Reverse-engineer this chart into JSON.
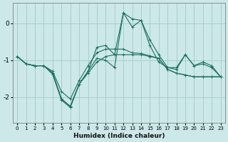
{
  "xlabel": "Humidex (Indice chaleur)",
  "ylabel": "",
  "background_color": "#cce8e8",
  "grid_color": "#aacece",
  "line_color": "#1a6e60",
  "xlim": [
    -0.5,
    23.5
  ],
  "ylim": [
    -2.7,
    0.55
  ],
  "xticks": [
    0,
    1,
    2,
    3,
    4,
    5,
    6,
    7,
    8,
    9,
    10,
    11,
    12,
    13,
    14,
    15,
    16,
    17,
    18,
    19,
    20,
    21,
    22,
    23
  ],
  "yticks": [
    0,
    -1,
    -2
  ],
  "series": [
    [
      -0.9,
      -1.1,
      -1.15,
      -1.15,
      -1.35,
      -2.05,
      -2.25,
      -1.65,
      -1.3,
      -0.95,
      -1.0,
      -1.2,
      0.28,
      -0.1,
      0.08,
      -0.45,
      -0.85,
      -1.2,
      -1.2,
      -0.85,
      -1.15,
      -1.1,
      -1.2,
      -1.45
    ],
    [
      -0.9,
      -1.1,
      -1.15,
      -1.15,
      -1.35,
      -2.05,
      -2.25,
      -1.65,
      -1.3,
      -0.65,
      -0.6,
      -0.85,
      0.28,
      0.12,
      0.08,
      -0.6,
      -1.05,
      -1.2,
      -1.25,
      -0.85,
      -1.15,
      -1.05,
      -1.15,
      -1.45
    ],
    [
      -0.9,
      -1.1,
      -1.15,
      -1.15,
      -1.3,
      -1.85,
      -2.05,
      -1.55,
      -1.15,
      -0.8,
      -0.7,
      -0.7,
      -0.7,
      -0.8,
      -0.82,
      -0.88,
      -0.95,
      -1.25,
      -1.35,
      -1.4,
      -1.45,
      -1.45,
      -1.45,
      -1.45
    ],
    [
      -0.9,
      -1.1,
      -1.15,
      -1.15,
      -1.38,
      -2.08,
      -2.28,
      -1.65,
      -1.35,
      -1.05,
      -0.9,
      -0.85,
      -0.85,
      -0.85,
      -0.85,
      -0.9,
      -0.95,
      -1.25,
      -1.35,
      -1.4,
      -1.45,
      -1.45,
      -1.45,
      -1.45
    ]
  ]
}
